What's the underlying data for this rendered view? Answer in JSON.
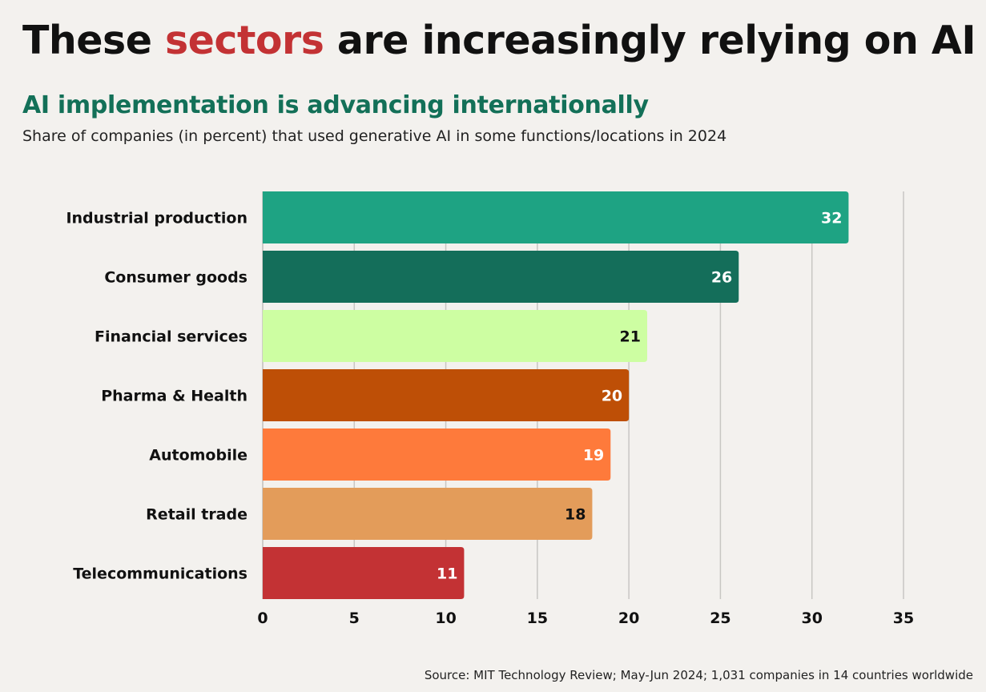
{
  "header": {
    "title_before": "These ",
    "title_accent": "sectors",
    "title_after": " are increasingly relying on AI",
    "subtitle": "AI implementation is advancing internationally",
    "description": "Share of companies (in percent) that used generative AI in some functions/locations in 2024"
  },
  "footer": {
    "source": "Source: MIT Technology Review; May-Jun 2024; 1,031 companies in 14 countries worldwide"
  },
  "colors": {
    "title_accent": "#c33234",
    "subtitle": "#137058",
    "background": "#f3f1ee",
    "gridline": "#c8c6c3"
  },
  "chart_data": {
    "type": "bar",
    "orientation": "horizontal",
    "title": "These sectors are increasingly relying on AI",
    "subtitle": "AI implementation is advancing internationally",
    "xlabel": "",
    "ylabel": "",
    "unit": "percent",
    "categories": [
      "Industrial production",
      "Consumer goods",
      "Financial services",
      "Pharma & Health",
      "Automobile",
      "Retail trade",
      "Telecommunications"
    ],
    "values": [
      32,
      26,
      21,
      20,
      19,
      18,
      11
    ],
    "bar_colors": [
      "#1ea383",
      "#146e5a",
      "#cdfea2",
      "#be4f06",
      "#fe7a3b",
      "#e39c5a",
      "#c33234"
    ],
    "label_colors": [
      "#ffffff",
      "#ffffff",
      "#111111",
      "#ffffff",
      "#ffffff",
      "#111111",
      "#ffffff"
    ],
    "xlim": [
      0,
      35
    ],
    "xticks": [
      0,
      5,
      10,
      15,
      20,
      25,
      30,
      35
    ],
    "grid": true,
    "legend": "none",
    "source": "MIT Technology Review; May-Jun 2024; 1,031 companies in 14 countries worldwide"
  }
}
